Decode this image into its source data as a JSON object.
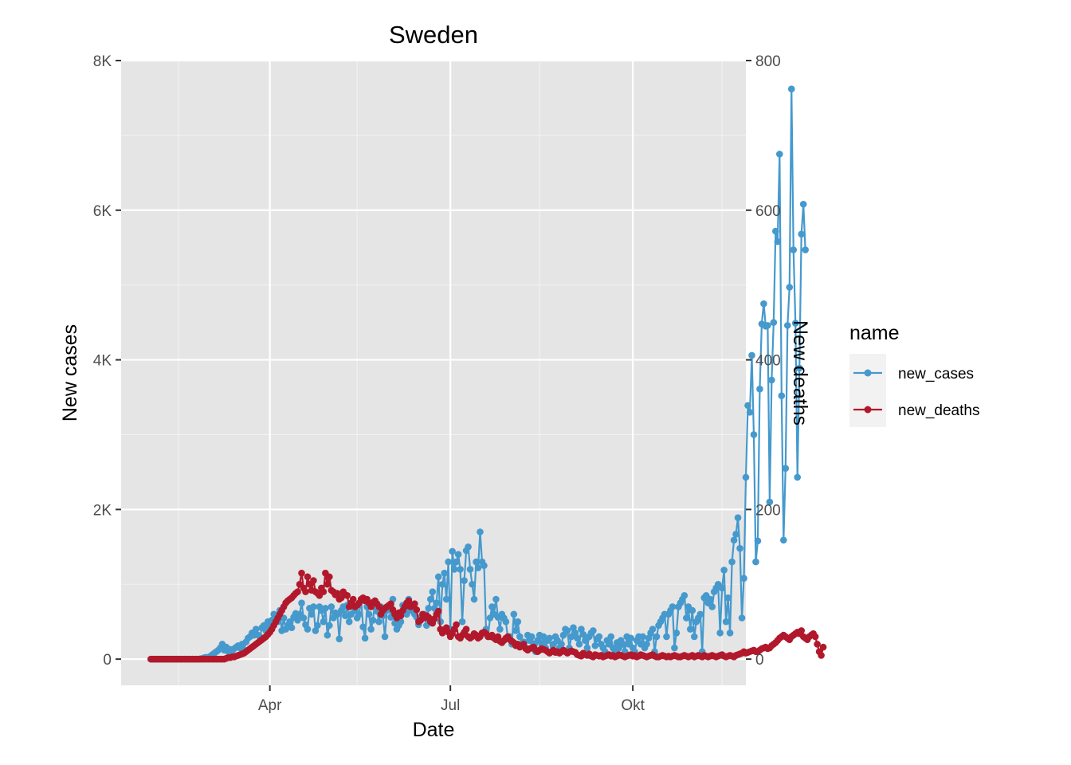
{
  "chart_data": {
    "type": "line",
    "title": "Sweden",
    "xlabel": "Date",
    "ylabel": "New cases",
    "y2label": "New deaths",
    "x_start": "2020-02-01",
    "xlim": [
      "2020-01-17",
      "2020-11-27"
    ],
    "ylim": [
      -350,
      8000
    ],
    "y2lim": [
      -35,
      800
    ],
    "x_ticks": [
      {
        "date": "2020-04-01",
        "label": "Apr"
      },
      {
        "date": "2020-07-01",
        "label": "Jul"
      },
      {
        "date": "2020-10-01",
        "label": "Okt"
      }
    ],
    "x_minor_ticks": [
      "2020-02-15",
      "2020-05-15",
      "2020-08-15",
      "2020-11-15"
    ],
    "y_ticks": [
      {
        "value": 0,
        "label": "0"
      },
      {
        "value": 2000,
        "label": "2K"
      },
      {
        "value": 4000,
        "label": "4K"
      },
      {
        "value": 6000,
        "label": "6K"
      },
      {
        "value": 8000,
        "label": "8K"
      }
    ],
    "y2_ticks": [
      {
        "value": 0,
        "label": "0"
      },
      {
        "value": 200,
        "label": "200"
      },
      {
        "value": 400,
        "label": "400"
      },
      {
        "value": 600,
        "label": "600"
      },
      {
        "value": 800,
        "label": "800"
      }
    ],
    "legend": {
      "title": "name",
      "position": "right"
    },
    "grid": true,
    "series": [
      {
        "name": "new_cases",
        "axis": "left",
        "color": "#4599cd",
        "values": [
          0,
          0,
          0,
          0,
          0,
          0,
          0,
          0,
          0,
          0,
          0,
          0,
          0,
          0,
          0,
          0,
          0,
          0,
          0,
          0,
          0,
          0,
          0,
          0,
          0,
          5,
          10,
          20,
          25,
          20,
          40,
          60,
          80,
          100,
          120,
          150,
          200,
          120,
          160,
          100,
          130,
          110,
          140,
          160,
          180,
          150,
          200,
          120,
          230,
          280,
          300,
          350,
          320,
          400,
          320,
          300,
          420,
          450,
          380,
          500,
          450,
          520,
          600,
          550,
          500,
          650,
          380,
          550,
          400,
          450,
          500,
          420,
          560,
          610,
          520,
          600,
          750,
          550,
          460,
          400,
          680,
          600,
          700,
          380,
          450,
          700,
          650,
          500,
          680,
          320,
          450,
          700,
          550,
          620,
          600,
          270,
          650,
          700,
          580,
          720,
          500,
          600,
          700,
          650,
          550,
          600,
          800,
          430,
          280,
          700,
          600,
          400,
          520,
          780,
          640,
          500,
          700,
          580,
          300,
          650,
          720,
          560,
          800,
          480,
          400,
          450,
          500,
          720,
          650,
          600,
          800,
          650,
          710,
          600,
          560,
          460,
          520,
          550,
          600,
          450,
          680,
          800,
          900,
          680,
          750,
          1100,
          500,
          1000,
          1150,
          800,
          1300,
          400,
          1440,
          1200,
          1300,
          1400,
          1200,
          500,
          1050,
          1450,
          1500,
          1200,
          1000,
          800,
          1300,
          1220,
          1700,
          1300,
          1250,
          400,
          300,
          550,
          700,
          600,
          800,
          560,
          400,
          600,
          550,
          500,
          280,
          300,
          200,
          600,
          380,
          500,
          300,
          200,
          230,
          150,
          320,
          250,
          300,
          200,
          100,
          250,
          320,
          200,
          300,
          150,
          250,
          280,
          100,
          200,
          300,
          250,
          150,
          200,
          320,
          400,
          380,
          150,
          300,
          420,
          350,
          280,
          200,
          400,
          330,
          250,
          150,
          300,
          350,
          380,
          180,
          270,
          300,
          200,
          150,
          100,
          250,
          200,
          300,
          150,
          100,
          220,
          150,
          250,
          200,
          100,
          300,
          200,
          280,
          150,
          100,
          250,
          300,
          200,
          300,
          150,
          200,
          280,
          350,
          400,
          100,
          300,
          450,
          500,
          550,
          600,
          300,
          600,
          650,
          700,
          150,
          350,
          700,
          750,
          800,
          850,
          550,
          700,
          400,
          650,
          300,
          500,
          550,
          600,
          100,
          820,
          850,
          750,
          800,
          700,
          900,
          950,
          1000,
          350,
          950,
          1190,
          500,
          820,
          350,
          1300,
          1590,
          1670,
          1890,
          1480,
          550,
          1080,
          2430,
          3390,
          3300,
          4060,
          3000,
          1300,
          1580,
          3610,
          4480,
          4750,
          4450,
          4460,
          2100,
          3730,
          4500,
          5720,
          5580,
          6750,
          3520,
          1590,
          2550,
          4460,
          4970,
          7620,
          5470,
          4490,
          2430,
          3890,
          5680,
          6080,
          5470
        ]
      },
      {
        "name": "new_deaths",
        "axis": "right",
        "color": "#b2182b",
        "values": [
          0,
          0,
          0,
          0,
          0,
          0,
          0,
          0,
          0,
          0,
          0,
          0,
          0,
          0,
          0,
          0,
          0,
          0,
          0,
          0,
          0,
          0,
          0,
          0,
          0,
          0,
          0,
          0,
          0,
          0,
          0,
          0,
          0,
          0,
          0,
          0,
          0,
          0,
          1,
          2,
          2,
          3,
          3,
          4,
          5,
          6,
          7,
          8,
          10,
          12,
          14,
          16,
          18,
          20,
          22,
          24,
          26,
          28,
          30,
          33,
          36,
          40,
          45,
          50,
          55,
          60,
          65,
          70,
          75,
          78,
          80,
          82,
          85,
          88,
          90,
          100,
          115,
          95,
          90,
          110,
          100,
          92,
          105,
          90,
          88,
          85,
          95,
          90,
          115,
          100,
          110,
          92,
          90,
          86,
          88,
          80,
          82,
          90,
          86,
          85,
          70,
          75,
          80,
          70,
          72,
          75,
          80,
          82,
          78,
          80,
          75,
          70,
          76,
          78,
          74,
          70,
          60,
          65,
          68,
          70,
          72,
          74,
          66,
          60,
          55,
          62,
          58,
          65,
          70,
          75,
          78,
          70,
          72,
          74,
          66,
          50,
          52,
          60,
          55,
          58,
          56,
          50,
          48,
          54,
          60,
          64,
          40,
          35,
          38,
          42,
          36,
          30,
          34,
          40,
          46,
          30,
          28,
          32,
          36,
          40,
          30,
          28,
          30,
          34,
          32,
          28,
          30,
          35,
          36,
          34,
          30,
          30,
          32,
          28,
          26,
          30,
          24,
          22,
          25,
          28,
          30,
          26,
          24,
          22,
          18,
          20,
          16,
          18,
          20,
          14,
          12,
          14,
          15,
          16,
          12,
          10,
          12,
          14,
          13,
          12,
          10,
          8,
          10,
          12,
          9,
          10,
          8,
          10,
          12,
          10,
          8,
          10,
          11,
          10,
          9,
          6,
          5,
          4,
          8,
          6,
          5,
          7,
          4,
          3,
          6,
          5,
          4,
          5,
          3,
          4,
          5,
          6,
          4,
          5,
          3,
          4,
          6,
          5,
          4,
          3,
          4,
          5,
          6,
          4,
          5,
          3,
          4,
          6,
          5,
          4,
          3,
          4,
          5,
          6,
          4,
          3,
          3,
          4,
          5,
          4,
          3,
          4,
          3,
          4,
          5,
          4,
          3,
          3,
          4,
          5,
          4,
          3,
          4,
          5,
          3,
          4,
          5,
          4,
          3,
          5,
          4,
          3,
          4,
          5,
          4,
          3,
          4,
          5,
          6,
          4,
          3,
          4,
          5,
          4,
          3,
          5,
          6,
          7,
          8,
          10,
          8,
          9,
          10,
          11,
          12,
          10,
          10,
          12,
          14,
          15,
          16,
          14,
          15,
          18,
          20,
          22,
          25,
          28,
          30,
          32,
          30,
          28,
          26,
          30,
          32,
          34,
          36,
          34,
          38,
          30,
          28,
          26,
          30,
          32,
          34,
          30,
          20,
          10,
          5,
          16
        ]
      }
    ]
  }
}
